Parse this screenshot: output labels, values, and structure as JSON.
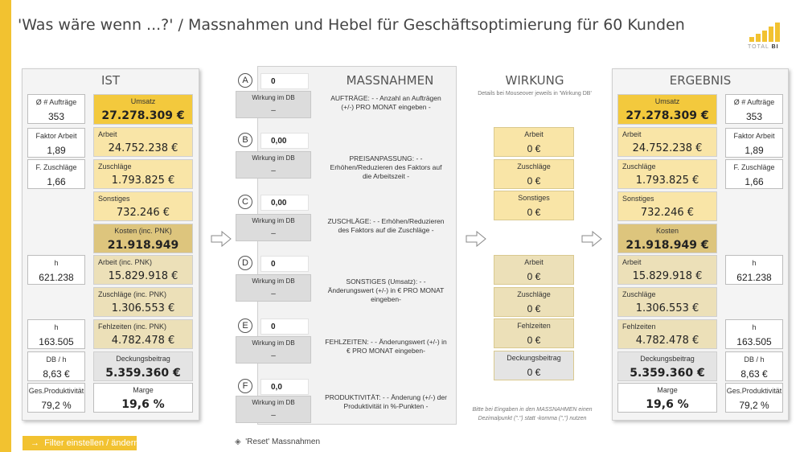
{
  "title": "'Was wäre wenn ...?' / Massnahmen und Hebel für Geschäftsoptimierung für 60 Kunden",
  "logo": {
    "text_a": "TOTAL",
    "text_b": "BI"
  },
  "ist": {
    "header": "IST",
    "left": [
      {
        "label": "Ø # Aufträge",
        "value": "353"
      },
      {
        "label": "Faktor Arbeit",
        "value": "1,89"
      },
      {
        "label": "F. Zuschläge",
        "value": "1,66"
      },
      {
        "label": "h",
        "value": "621.238"
      },
      {
        "label": "h",
        "value": "163.505"
      },
      {
        "label": "DB / h",
        "value": "8,63 €"
      },
      {
        "label": "Ges.Produktivität",
        "value": "79,2 %"
      }
    ],
    "right": [
      {
        "label": "Umsatz",
        "value": "27.278.309 €"
      },
      {
        "label": "Arbeit",
        "value": "24.752.238 €"
      },
      {
        "label": "Zuschläge",
        "value": "1.793.825 €"
      },
      {
        "label": "Sonstiges",
        "value": "732.246 €"
      },
      {
        "label": "Kosten (inc. PNK)",
        "value": "21.918.949"
      },
      {
        "label": "Arbeit (inc. PNK)",
        "value": "15.829.918 €"
      },
      {
        "label": "Zuschläge (inc. PNK)",
        "value": "1.306.553 €"
      },
      {
        "label": "Fehlzeiten (inc. PNK)",
        "value": "4.782.478 €"
      },
      {
        "label": "Deckungsbeitrag",
        "value": "5.359.360 €"
      },
      {
        "label": "Marge",
        "value": "19,6 %"
      }
    ]
  },
  "massnahmen": {
    "header": "MASSNAHMEN",
    "items": [
      {
        "letter": "A",
        "input": "0",
        "db_label": "Wirkung im DB",
        "db_value": "–",
        "desc": "AUFTRÄGE: - - Anzahl an Aufträgen (+/-) PRO MONAT eingeben -"
      },
      {
        "letter": "B",
        "input": "0,00",
        "db_label": "Wirkung im DB",
        "db_value": "–",
        "desc": "PREISANPASSUNG: - - Erhöhen/Reduzieren des Faktors auf die Arbeitszeit -"
      },
      {
        "letter": "C",
        "input": "0,00",
        "db_label": "Wirkung im DB",
        "db_value": "–",
        "desc": "ZUSCHLÄGE: - - Erhöhen/Reduzieren des Faktors auf die Zuschläge -"
      },
      {
        "letter": "D",
        "input": "0",
        "db_label": "Wirkung im DB",
        "db_value": "–",
        "desc": "SONSTIGES (Umsatz): - - Änderungswert (+/-) in € PRO MONAT eingeben-"
      },
      {
        "letter": "E",
        "input": "0",
        "db_label": "Wirkung im DB",
        "db_value": "–",
        "desc": "FEHLZEITEN: - - Änderungswert (+/-) in € PRO MONAT eingeben-"
      },
      {
        "letter": "F",
        "input": "0,0",
        "db_label": "Wirkung im DB",
        "db_value": "–",
        "desc": "PRODUKTIVITÄT: - - Änderung (+/-) der Produktivität in %-Punkten -"
      }
    ]
  },
  "wirkung": {
    "header": "WIRKUNG",
    "subnote": "Details bei Mouseover jeweils in 'Wirkung DB'",
    "cards": [
      {
        "label": "Arbeit",
        "value": "0 €"
      },
      {
        "label": "Zuschläge",
        "value": "0 €"
      },
      {
        "label": "Sonstiges",
        "value": "0 €"
      },
      {
        "label": "Arbeit",
        "value": "0 €"
      },
      {
        "label": "Zuschläge",
        "value": "0 €"
      },
      {
        "label": "Fehlzeiten",
        "value": "0 €"
      },
      {
        "label": "Deckungsbeitrag",
        "value": "0 €"
      }
    ],
    "bottom_note": "Bitte bei Eingaben in den MASSNAHMEN einen Dezimalpunkt (\".\") statt -komma (\",\") nutzen"
  },
  "ergebnis": {
    "header": "ERGEBNIS",
    "left": [
      {
        "label": "Umsatz",
        "value": "27.278.309 €"
      },
      {
        "label": "Arbeit",
        "value": "24.752.238 €"
      },
      {
        "label": "Zuschläge",
        "value": "1.793.825 €"
      },
      {
        "label": "Sonstiges",
        "value": "732.246 €"
      },
      {
        "label": "Kosten",
        "value": "21.918.949 €"
      },
      {
        "label": "Arbeit",
        "value": "15.829.918 €"
      },
      {
        "label": "Zuschläge",
        "value": "1.306.553 €"
      },
      {
        "label": "Fehlzeiten",
        "value": "4.782.478 €"
      },
      {
        "label": "Deckungsbeitrag",
        "value": "5.359.360 €"
      },
      {
        "label": "Marge",
        "value": "19,6 %"
      }
    ],
    "right": [
      {
        "label": "Ø # Aufträge",
        "value": "353"
      },
      {
        "label": "Faktor Arbeit",
        "value": "1,89"
      },
      {
        "label": "F. Zuschläge",
        "value": "1,66"
      },
      {
        "label": "h",
        "value": "621.238"
      },
      {
        "label": "h",
        "value": "163.505"
      },
      {
        "label": "DB / h",
        "value": "8,63 €"
      },
      {
        "label": "Ges.Produktivität",
        "value": "79,2 %"
      }
    ]
  },
  "footer": {
    "filter_button": "Filter einstellen / ändern",
    "reset_label": "'Reset' Massnahmen"
  }
}
